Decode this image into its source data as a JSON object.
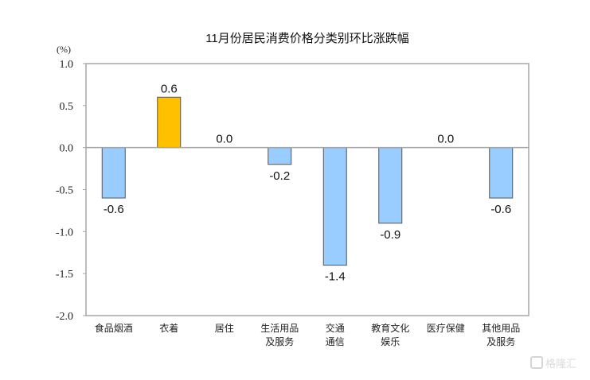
{
  "chart_data": {
    "type": "bar",
    "title": "11月份居民消费价格分类别环比涨跌幅",
    "ylabel": "(%)",
    "xlabel": "",
    "ylim": [
      -2.0,
      1.0
    ],
    "yticks": [
      "1.0",
      "0.5",
      "0.0",
      "-0.5",
      "-1.0",
      "-1.5",
      "-2.0"
    ],
    "categories": [
      [
        "食品烟酒"
      ],
      [
        "衣着"
      ],
      [
        "居住"
      ],
      [
        "生活用品",
        "及服务"
      ],
      [
        "交通",
        "通信"
      ],
      [
        "教育文化",
        "娱乐"
      ],
      [
        "医疗保健"
      ],
      [
        "其他用品",
        "及服务"
      ]
    ],
    "values": [
      -0.6,
      0.6,
      0.0,
      -0.2,
      -1.4,
      -0.9,
      0.0,
      -0.6
    ],
    "data_labels": [
      "-0.6",
      "0.6",
      "0.0",
      "-0.2",
      "-1.4",
      "-0.9",
      "0.0",
      "-0.6"
    ],
    "grid": false,
    "colors": {
      "negative": "#99ccff",
      "positive": "#ffc000",
      "edge": "#555555",
      "axis": "#a6a6a6"
    }
  },
  "watermark": "格隆汇"
}
